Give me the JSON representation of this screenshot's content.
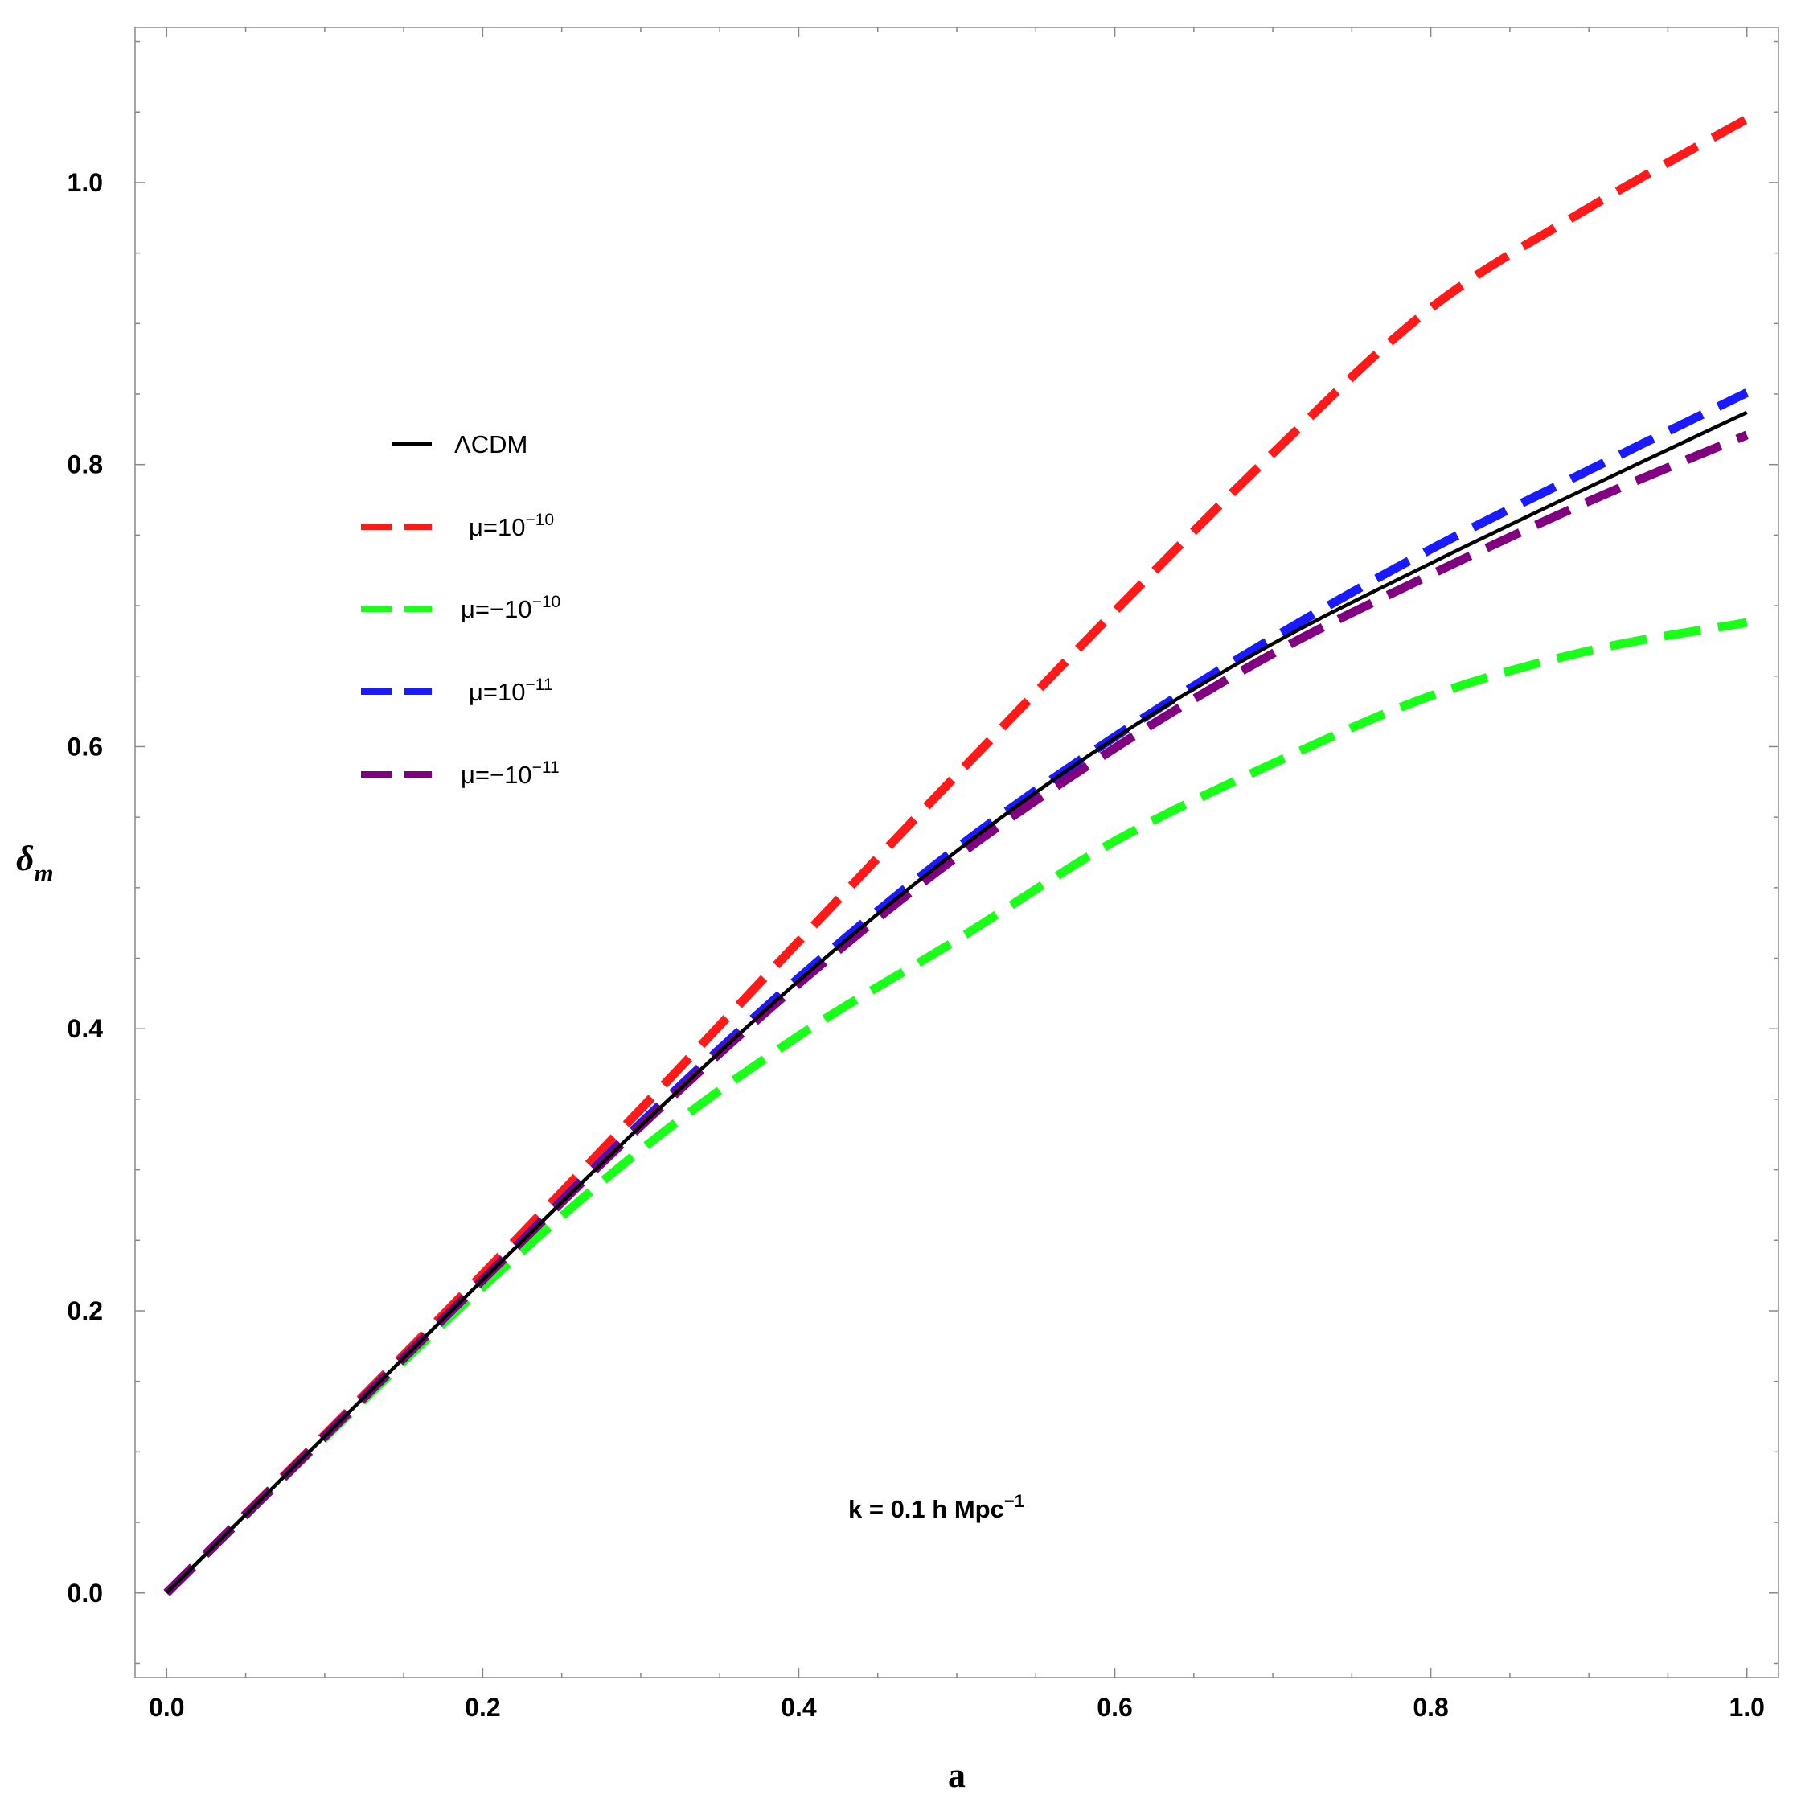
{
  "chart_data": {
    "type": "line",
    "xlabel": "a",
    "ylabel": "δ",
    "ylabel_sub": "m",
    "xlim": [
      -0.02,
      1.02
    ],
    "ylim": [
      -0.06,
      1.11
    ],
    "x_ticks": [
      0.0,
      0.2,
      0.4,
      0.6,
      0.8,
      1.0
    ],
    "x_tick_labels": [
      "0.0",
      "0.2",
      "0.4",
      "0.6",
      "0.8",
      "1.0"
    ],
    "y_ticks": [
      0.0,
      0.2,
      0.4,
      0.6,
      0.8,
      1.0
    ],
    "y_tick_labels": [
      "0.0",
      "0.2",
      "0.4",
      "0.6",
      "0.8",
      "1.0"
    ],
    "grid": false,
    "legend_position": "upper-left",
    "annotation": {
      "prefix": "k = 0.1 h  Mpc",
      "sup": "−1"
    },
    "series": [
      {
        "name": "ΛCDM",
        "legend": {
          "prefix": "ΛCDM",
          "sup": ""
        },
        "color": "#000000",
        "style": "solid",
        "x": [
          0.0,
          0.1,
          0.2,
          0.3,
          0.4,
          0.5,
          0.6,
          0.7,
          0.8,
          0.9,
          1.0
        ],
        "y": [
          0.0,
          0.111,
          0.222,
          0.331,
          0.434,
          0.526,
          0.606,
          0.673,
          0.73,
          0.784,
          0.837
        ]
      },
      {
        "name": "μ=10−10",
        "legend": {
          "prefix": "μ=10",
          "sup": "−10"
        },
        "color": "#ff1a1a",
        "style": "dashed",
        "x": [
          0.0,
          0.1,
          0.2,
          0.3,
          0.4,
          0.5,
          0.6,
          0.7,
          0.8,
          0.9,
          1.0
        ],
        "y": [
          0.0,
          0.112,
          0.226,
          0.343,
          0.462,
          0.58,
          0.696,
          0.808,
          0.911,
          0.982,
          1.045
        ]
      },
      {
        "name": "μ=−10−10",
        "legend": {
          "prefix": "μ=−10",
          "sup": "−10"
        },
        "color": "#1aff1a",
        "style": "dashed",
        "x": [
          0.0,
          0.1,
          0.2,
          0.3,
          0.4,
          0.5,
          0.6,
          0.7,
          0.8,
          0.9,
          1.0
        ],
        "y": [
          0.0,
          0.11,
          0.217,
          0.314,
          0.395,
          0.463,
          0.533,
          0.588,
          0.636,
          0.668,
          0.688
        ]
      },
      {
        "name": "μ=10−11",
        "legend": {
          "prefix": "μ=10",
          "sup": "−11"
        },
        "color": "#1a1aff",
        "style": "dashed",
        "x": [
          0.0,
          0.1,
          0.2,
          0.3,
          0.4,
          0.5,
          0.6,
          0.7,
          0.8,
          0.9,
          1.0
        ],
        "y": [
          0.0,
          0.111,
          0.222,
          0.333,
          0.436,
          0.528,
          0.607,
          0.677,
          0.74,
          0.796,
          0.851
        ]
      },
      {
        "name": "μ=−10−11",
        "legend": {
          "prefix": "μ=−10",
          "sup": "−11"
        },
        "color": "#800080",
        "style": "dashed",
        "x": [
          0.0,
          0.1,
          0.2,
          0.3,
          0.4,
          0.5,
          0.6,
          0.7,
          0.8,
          0.9,
          1.0
        ],
        "y": [
          0.0,
          0.111,
          0.222,
          0.331,
          0.432,
          0.522,
          0.599,
          0.666,
          0.722,
          0.774,
          0.821
        ]
      }
    ]
  }
}
